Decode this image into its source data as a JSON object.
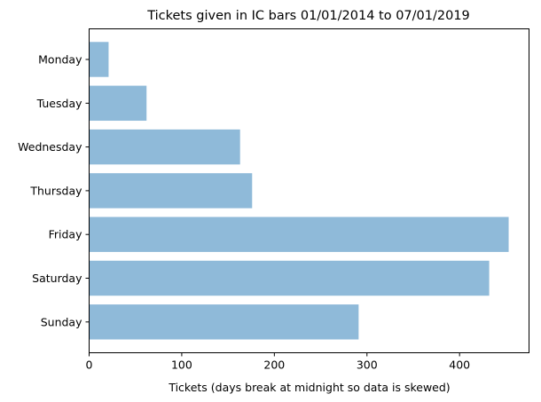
{
  "chart_data": {
    "type": "bar",
    "orientation": "horizontal",
    "title": "Tickets given in IC bars 01/01/2014 to 07/01/2019",
    "xlabel": "Tickets (days break at midnight so data is skewed)",
    "ylabel": "",
    "categories": [
      "Monday",
      "Tuesday",
      "Wednesday",
      "Thursday",
      "Friday",
      "Saturday",
      "Sunday"
    ],
    "values": [
      21,
      62,
      163,
      176,
      453,
      432,
      291
    ],
    "xlim": [
      0,
      475
    ],
    "xticks": [
      0,
      100,
      200,
      300,
      400
    ],
    "bar_color": "#8fbad9",
    "grid": false,
    "legend": "none"
  }
}
